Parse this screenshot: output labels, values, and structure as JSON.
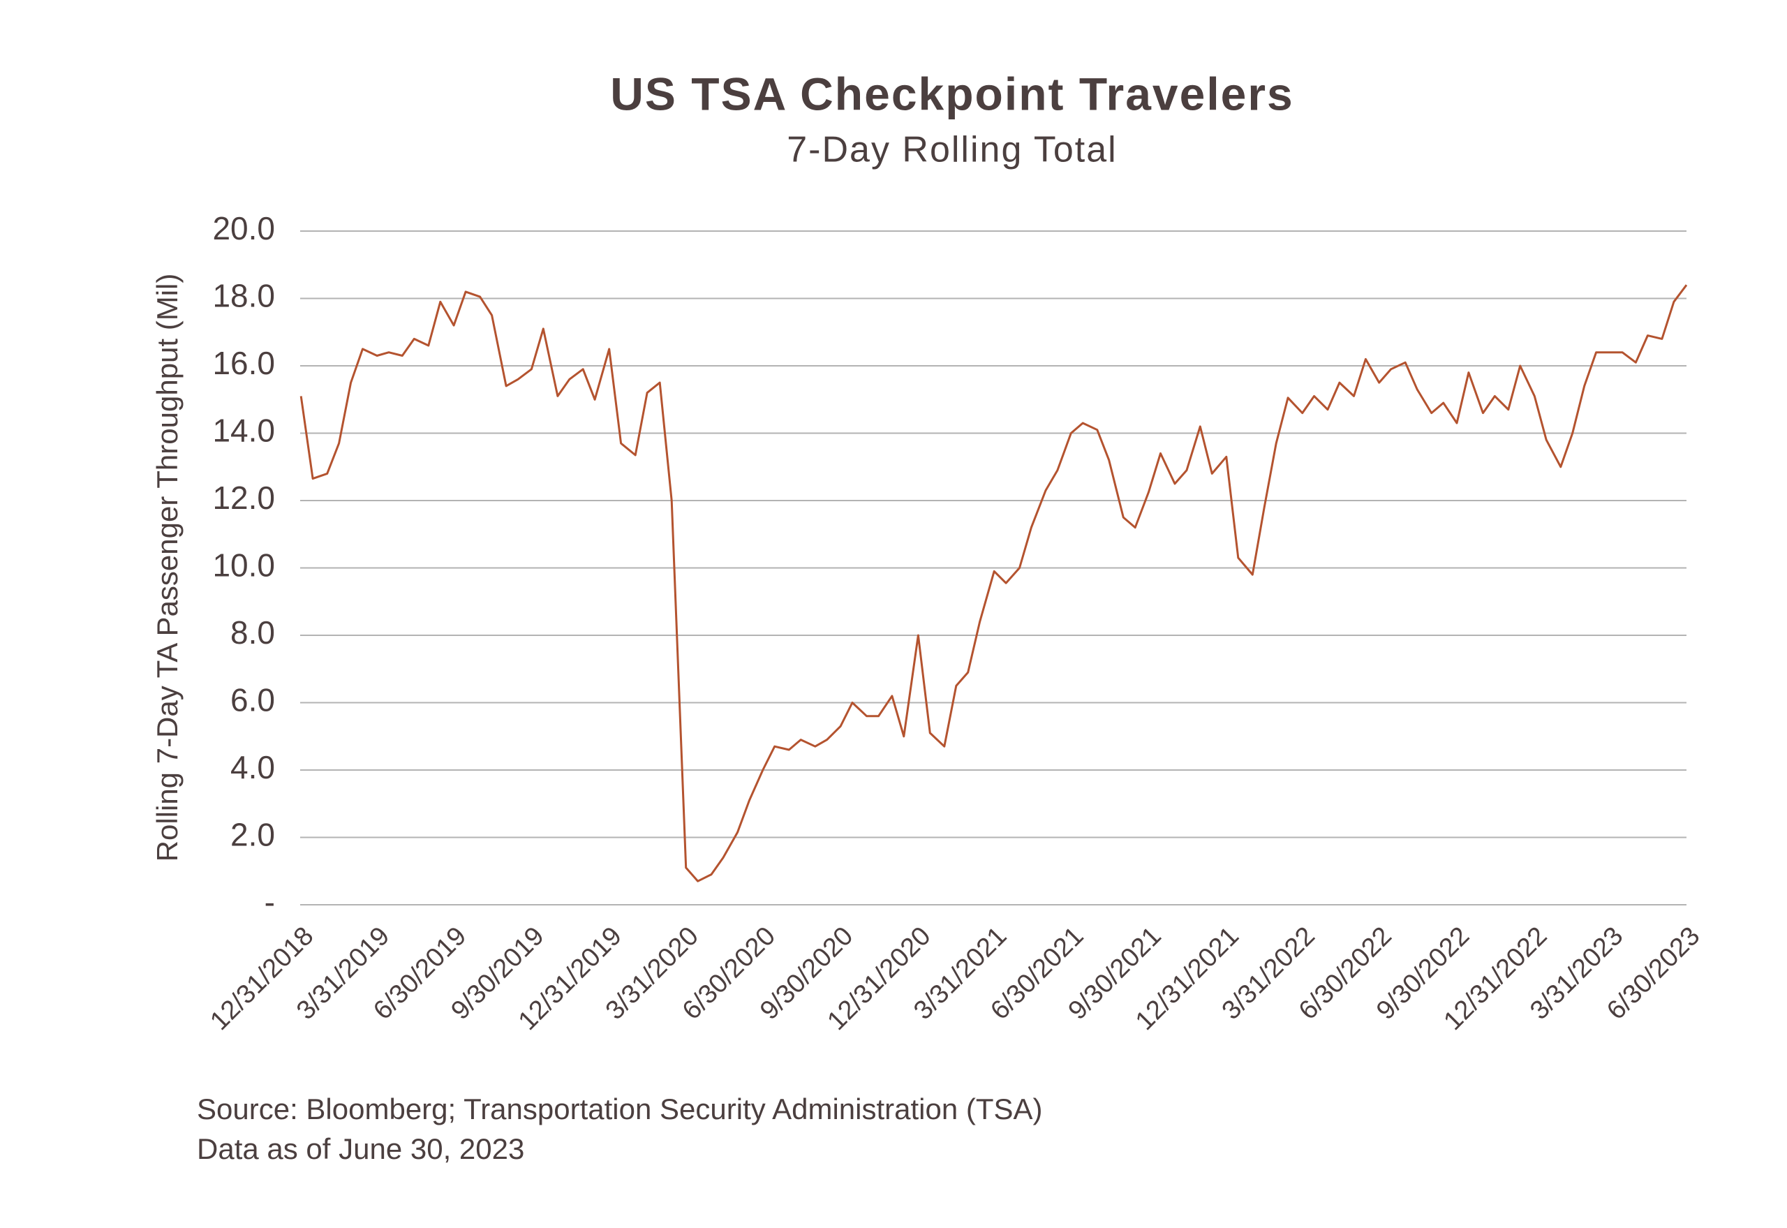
{
  "chart_data": {
    "type": "line",
    "title": "US TSA Checkpoint Travelers",
    "subtitle": "7-Day Rolling Total",
    "y_label": "Rolling 7-Day TA Passenger Throughput (Mil)",
    "source": "Source: Bloomberg; Transportation Security Administration (TSA)",
    "note": "Data as of June 30, 2023",
    "color": "#b4532f",
    "grid": true,
    "xlim": [
      "12/31/2018",
      "6/30/2023"
    ],
    "xticks": [
      "12/31/2018",
      "3/31/2019",
      "6/30/2019",
      "9/30/2019",
      "12/31/2019",
      "3/31/2020",
      "6/30/2020",
      "9/30/2020",
      "12/31/2020",
      "3/31/2021",
      "6/30/2021",
      "9/30/2021",
      "12/31/2021",
      "3/31/2022",
      "6/30/2022",
      "9/30/2022",
      "12/31/2022",
      "3/31/2023",
      "6/30/2023"
    ],
    "ylim": [
      0,
      20
    ],
    "yticks": [
      {
        "value": 0,
        "label": "-"
      },
      {
        "value": 2,
        "label": "2.0"
      },
      {
        "value": 4,
        "label": "4.0"
      },
      {
        "value": 6,
        "label": "6.0"
      },
      {
        "value": 8,
        "label": "8.0"
      },
      {
        "value": 10,
        "label": "10.0"
      },
      {
        "value": 12,
        "label": "12.0"
      },
      {
        "value": 14,
        "label": "14.0"
      },
      {
        "value": 16,
        "label": "16.0"
      },
      {
        "value": 18,
        "label": "18.0"
      },
      {
        "value": 20,
        "label": "20.0"
      }
    ],
    "x": [
      "1/1/2019",
      "1/15/2019",
      "2/1/2019",
      "2/15/2019",
      "3/1/2019",
      "3/15/2019",
      "4/1/2019",
      "4/15/2019",
      "5/1/2019",
      "5/15/2019",
      "6/1/2019",
      "6/15/2019",
      "7/1/2019",
      "7/15/2019",
      "8/1/2019",
      "8/15/2019",
      "9/1/2019",
      "9/15/2019",
      "10/1/2019",
      "10/15/2019",
      "11/1/2019",
      "11/15/2019",
      "12/1/2019",
      "12/15/2019",
      "1/1/2020",
      "1/15/2020",
      "2/1/2020",
      "2/15/2020",
      "3/1/2020",
      "3/15/2020",
      "4/1/2020",
      "4/15/2020",
      "5/1/2020",
      "5/15/2020",
      "6/1/2020",
      "6/15/2020",
      "7/1/2020",
      "7/15/2020",
      "8/1/2020",
      "8/15/2020",
      "9/1/2020",
      "9/15/2020",
      "10/1/2020",
      "10/15/2020",
      "11/1/2020",
      "11/15/2020",
      "12/1/2020",
      "12/15/2020",
      "1/1/2021",
      "1/15/2021",
      "2/1/2021",
      "2/15/2021",
      "3/1/2021",
      "3/15/2021",
      "4/1/2021",
      "4/15/2021",
      "5/1/2021",
      "5/15/2021",
      "6/1/2021",
      "6/15/2021",
      "7/1/2021",
      "7/15/2021",
      "8/1/2021",
      "8/15/2021",
      "9/1/2021",
      "9/15/2021",
      "10/1/2021",
      "10/15/2021",
      "11/1/2021",
      "11/15/2021",
      "12/1/2021",
      "12/15/2021",
      "1/1/2022",
      "1/15/2022",
      "2/1/2022",
      "2/15/2022",
      "3/1/2022",
      "3/15/2022",
      "4/1/2022",
      "4/15/2022",
      "5/1/2022",
      "5/15/2022",
      "6/1/2022",
      "6/15/2022",
      "7/1/2022",
      "7/15/2022",
      "8/1/2022",
      "8/15/2022",
      "9/1/2022",
      "9/15/2022",
      "10/1/2022",
      "10/15/2022",
      "11/1/2022",
      "11/15/2022",
      "12/1/2022",
      "12/15/2022",
      "1/1/2023",
      "1/15/2023",
      "2/1/2023",
      "2/15/2023",
      "3/1/2023",
      "3/15/2023",
      "4/1/2023",
      "4/15/2023",
      "5/1/2023",
      "5/15/2023",
      "6/1/2023",
      "6/15/2023",
      "6/30/2023"
    ],
    "values": [
      15.1,
      12.65,
      12.8,
      13.7,
      15.5,
      16.5,
      16.3,
      16.4,
      16.3,
      16.8,
      16.6,
      17.9,
      17.2,
      18.2,
      18.05,
      17.5,
      15.4,
      15.6,
      15.9,
      17.1,
      15.1,
      15.6,
      15.9,
      15.0,
      16.5,
      13.7,
      13.35,
      15.2,
      15.5,
      12.0,
      1.1,
      0.7,
      0.9,
      1.4,
      2.15,
      3.1,
      4.0,
      4.7,
      4.6,
      4.9,
      4.7,
      4.9,
      5.3,
      6.0,
      5.6,
      5.6,
      6.2,
      5.0,
      8.0,
      5.1,
      4.7,
      6.5,
      6.9,
      8.4,
      9.9,
      9.55,
      10.0,
      11.2,
      12.3,
      12.9,
      14.0,
      14.3,
      14.1,
      13.2,
      11.5,
      11.2,
      12.25,
      13.4,
      12.5,
      12.9,
      14.2,
      12.8,
      13.3,
      10.3,
      9.8,
      11.8,
      13.7,
      15.05,
      14.6,
      15.1,
      14.7,
      15.5,
      15.1,
      16.2,
      15.5,
      15.9,
      16.1,
      15.3,
      14.6,
      14.9,
      14.3,
      15.8,
      14.6,
      15.1,
      14.7,
      16.0,
      15.1,
      13.8,
      13.0,
      14.0,
      15.4,
      16.4,
      16.4,
      16.4,
      16.1,
      16.9,
      16.8,
      17.9,
      18.4
    ]
  }
}
